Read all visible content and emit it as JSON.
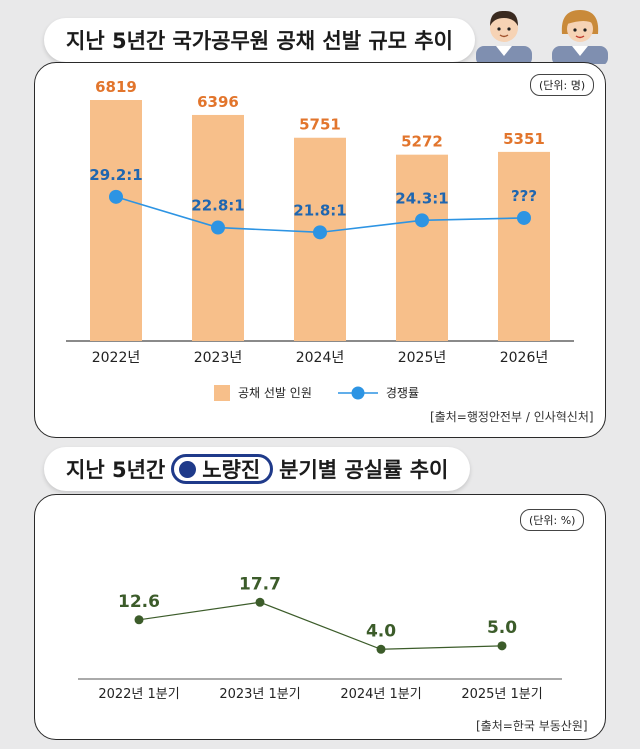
{
  "chart1_title": "지난 5년간 국가공무원 공채 선발 규모 추이",
  "chart2_title": {
    "prefix": "지난 5년간",
    "highlight": "노량진",
    "suffix": "분기별 공실률 추이"
  },
  "colors": {
    "bar": "#f7bf8a",
    "bar_label": "#e2752c",
    "line": "#2d94e3",
    "ratio_label": "#1f66b0",
    "line2": "#3c5c2a"
  },
  "chart_data": [
    {
      "type": "bar",
      "title": "지난 5년간 국가공무원 공채 선발 규모 추이",
      "unit": "(단위: 명)",
      "categories": [
        "2022년",
        "2023년",
        "2024년",
        "2025년",
        "2026년"
      ],
      "series": [
        {
          "name": "공채 선발 인원",
          "type": "bar",
          "values": [
            6819,
            6396,
            5751,
            5272,
            5351
          ],
          "labels": [
            "6819",
            "6396",
            "5751",
            "5272",
            "5351"
          ]
        },
        {
          "name": "경쟁률",
          "type": "line",
          "values": [
            29.2,
            22.8,
            21.8,
            24.3,
            24.8
          ],
          "labels": [
            "29.2:1",
            "22.8:1",
            "21.8:1",
            "24.3:1",
            "???"
          ]
        }
      ],
      "legend": [
        "공채 선발 인원",
        "경쟁률"
      ],
      "source": "[출처=행정안전부 / 인사혁신처]"
    },
    {
      "type": "line",
      "title": "지난 5년간 노량진 분기별 공실률 추이",
      "unit": "(단위: %)",
      "categories": [
        "2022년 1분기",
        "2023년 1분기",
        "2024년 1분기",
        "2025년 1분기"
      ],
      "values": [
        12.6,
        17.7,
        4.0,
        5.0
      ],
      "labels": [
        "12.6",
        "17.7",
        "4.0",
        "5.0"
      ],
      "source": "[출처=한국 부동산원]"
    }
  ]
}
